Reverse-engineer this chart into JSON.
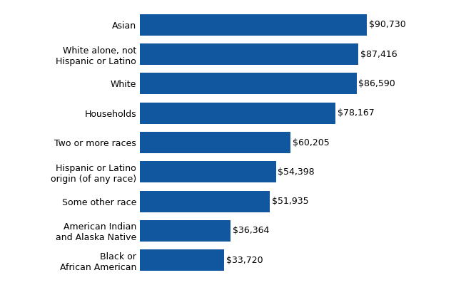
{
  "categories": [
    "Black or\nAfrican American",
    "American Indian\nand Alaska Native",
    "Some other race",
    "Hispanic or Latino\norigin (of any race)",
    "Two or more races",
    "Households",
    "White",
    "White alone, not\nHispanic or Latino",
    "Asian"
  ],
  "values": [
    33720,
    36364,
    51935,
    54398,
    60205,
    78167,
    86590,
    87416,
    90730
  ],
  "labels": [
    "$33,720",
    "$36,364",
    "$51,935",
    "$54,398",
    "$60,205",
    "$78,167",
    "$86,590",
    "$87,416",
    "$90,730"
  ],
  "bar_color": "#1157a0",
  "background_color": "#ffffff",
  "text_color": "#000000",
  "label_fontsize": 9.0,
  "value_fontsize": 9.0,
  "xlim": [
    0,
    108000
  ]
}
